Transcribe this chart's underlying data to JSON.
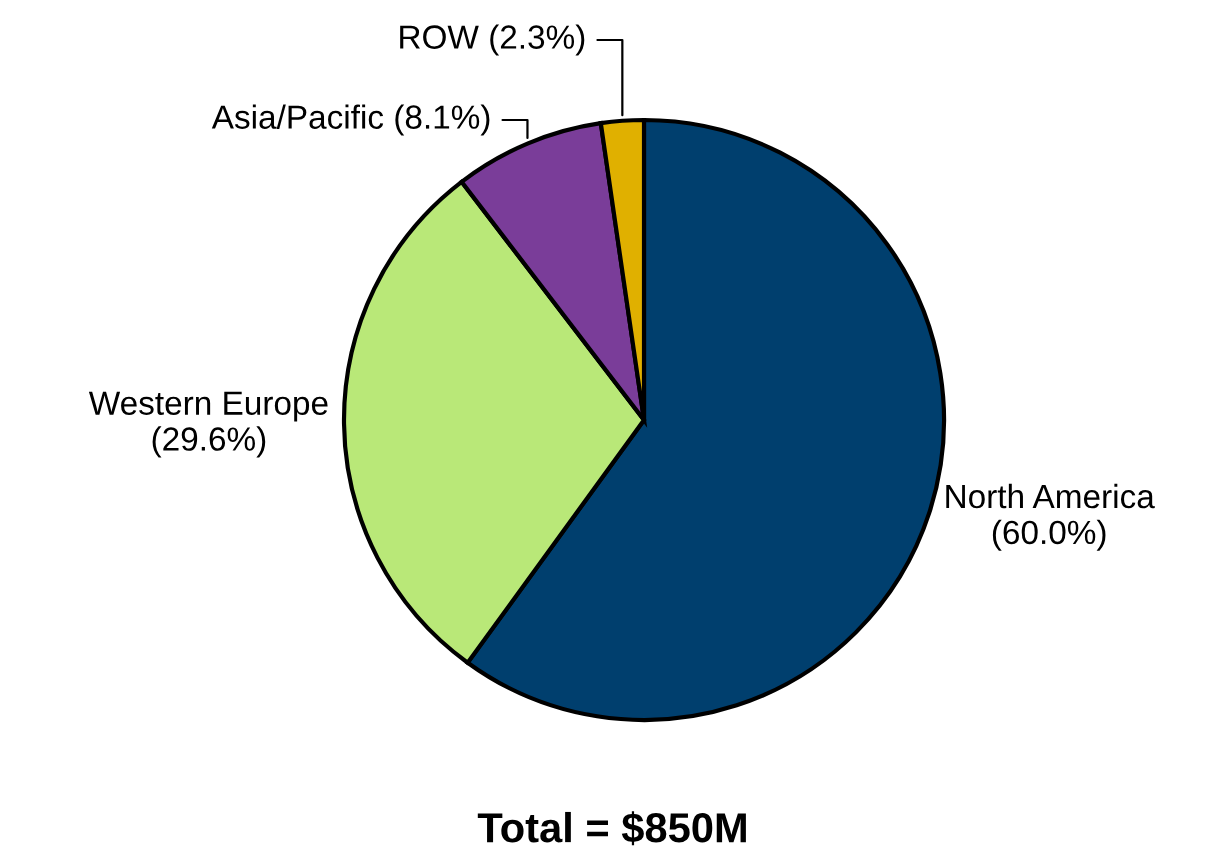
{
  "chart_data": {
    "type": "pie",
    "title": "Total = $850M",
    "categories": [
      "North America",
      "Western Europe",
      "Asia/Pacific",
      "ROW"
    ],
    "values": [
      60.0,
      29.6,
      8.1,
      2.3
    ],
    "value_labels": [
      "(60.0%)",
      "(29.6%)",
      "(8.1%)",
      "(2.3%)"
    ],
    "colors": [
      "#003f6e",
      "#b9e878",
      "#7a3d99",
      "#e0b000"
    ],
    "legend": false
  }
}
